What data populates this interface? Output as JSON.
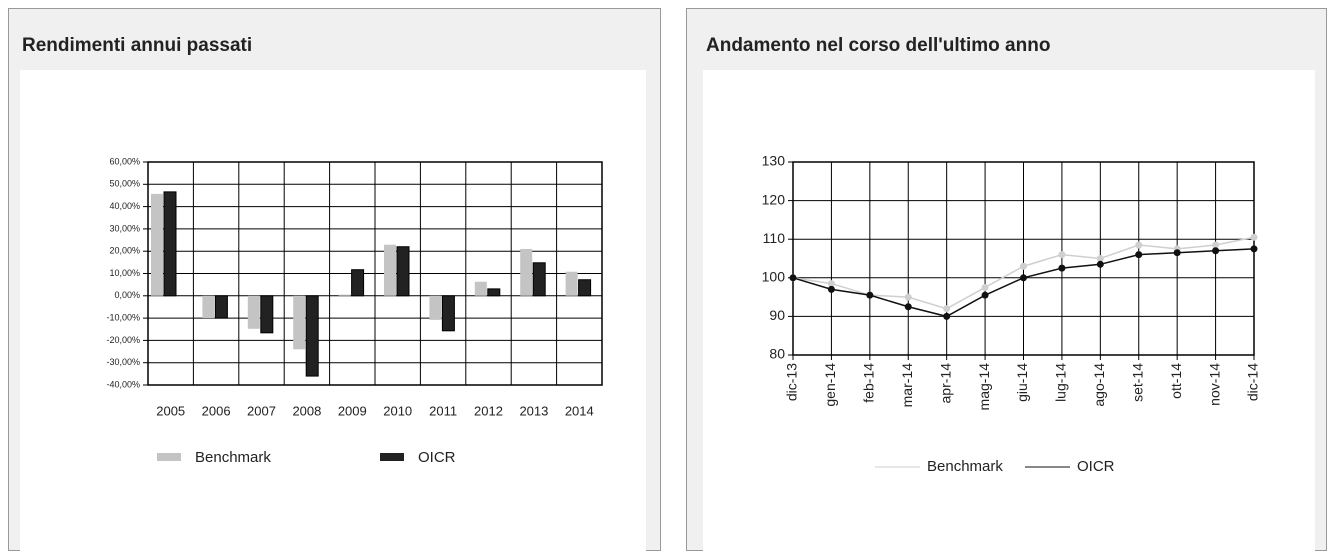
{
  "chart_data": [
    {
      "type": "bar",
      "title": "Rendimenti annui passati",
      "categories": [
        "2005",
        "2006",
        "2007",
        "2008",
        "2009",
        "2010",
        "2011",
        "2012",
        "2013",
        "2014"
      ],
      "series": [
        {
          "name": "Benchmark",
          "color": "#c4c4c4",
          "values": [
            45.7,
            -10,
            -14.8,
            -24,
            0.5,
            22.9,
            -10.8,
            6.3,
            21,
            10.8
          ]
        },
        {
          "name": "OICR",
          "color": "#222222",
          "values": [
            46.6,
            -10,
            -16.6,
            -36,
            11.7,
            22,
            -15.7,
            3.1,
            14.8,
            7.2
          ]
        }
      ],
      "ylim": [
        -40,
        60
      ],
      "yticks": [
        {
          "value": -40,
          "label": "-40,00%"
        },
        {
          "value": -30,
          "label": "-30,00%"
        },
        {
          "value": -20,
          "label": "-20,00%"
        },
        {
          "value": -10,
          "label": "-10,00%"
        },
        {
          "value": 0,
          "label": "0,00%"
        },
        {
          "value": 10,
          "label": "10,00%"
        },
        {
          "value": 20,
          "label": "20,00%"
        },
        {
          "value": 30,
          "label": "30,00%"
        },
        {
          "value": 40,
          "label": "40,00%"
        },
        {
          "value": 50,
          "label": "50,00%"
        },
        {
          "value": 60,
          "label": "60,00%"
        }
      ],
      "grid": true
    },
    {
      "type": "line",
      "title": "Andamento nel corso dell'ultimo anno",
      "categories": [
        "dic-13",
        "gen-14",
        "feb-14",
        "mar-14",
        "apr-14",
        "mag-14",
        "giu-14",
        "lug-14",
        "ago-14",
        "set-14",
        "ott-14",
        "nov-14",
        "dic-14"
      ],
      "series": [
        {
          "name": "Benchmark",
          "color": "#cfcfcf",
          "values": [
            100,
            98.5,
            95.5,
            95,
            92,
            97.5,
            103,
            106,
            105,
            108.5,
            107.5,
            108.5,
            110.5
          ]
        },
        {
          "name": "OICR",
          "color": "#111111",
          "values": [
            100,
            97,
            95.5,
            92.5,
            90,
            95.5,
            100,
            102.5,
            103.5,
            106,
            106.5,
            107,
            107.5
          ]
        }
      ],
      "ylim": [
        80,
        130
      ],
      "yticks": [
        80,
        90,
        100,
        110,
        120,
        130
      ],
      "grid": true
    }
  ]
}
